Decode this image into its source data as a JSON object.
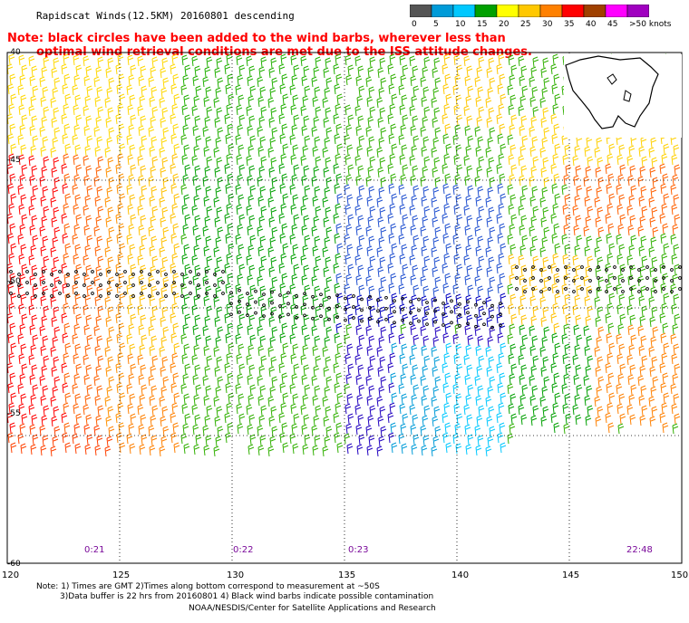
{
  "title": "Rapidscat Winds(12.5KM) 20160801 descending",
  "note_line1": "Note: black circles have been added to the wind barbs, wherever less than",
  "note_line2": "optimal wind retrieval conditions are met due to the ISS attitude changes.",
  "color_scale": {
    "labels": [
      "0",
      "5",
      "10",
      "15",
      "20",
      "25",
      "30",
      "35",
      "40",
      "45",
      ">50 knots"
    ],
    "colors": [
      "#555555",
      "#009bd8",
      "#00c8ff",
      "#00a000",
      "#ffff00",
      "#ffc800",
      "#ff8000",
      "#ff0000",
      "#a04000",
      "#ff00ff",
      "#a000c0"
    ]
  },
  "lat_labels": [
    "-40",
    "-45",
    "-50",
    "-55",
    "-60"
  ],
  "lon_labels": [
    "120",
    "125",
    "130",
    "135",
    "140",
    "145",
    "150"
  ],
  "time_labels": [
    "0:21",
    "0:22",
    "0:23",
    "22:48"
  ],
  "footer": {
    "line1": "Note: 1) Times are GMT 2)Times along bottom correspond to measurement at ~50S",
    "line2": "3)Data buffer is 22 hrs from 20160801 4) Black wind barbs indicate possible contamination",
    "line3": "NOAA/NESDIS/Center for Satellite Applications and Research"
  }
}
